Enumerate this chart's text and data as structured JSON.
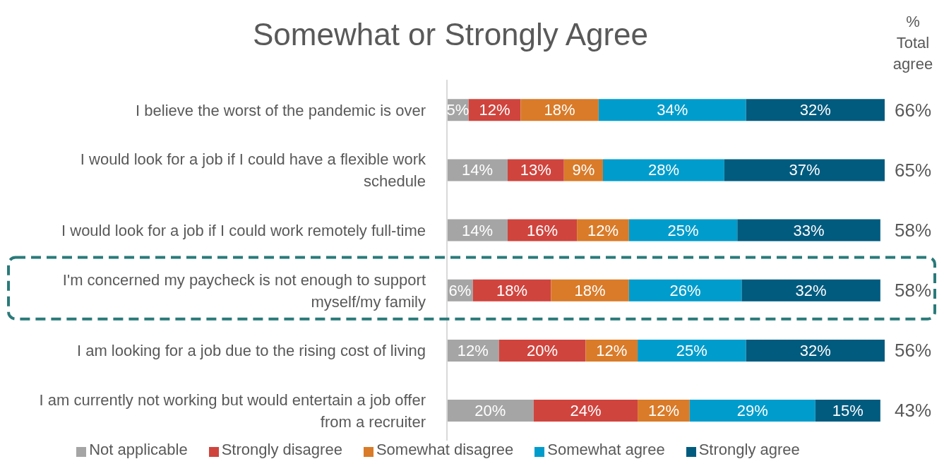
{
  "chart_data": {
    "type": "bar",
    "orientation": "horizontal",
    "stacked": true,
    "title": "Somewhat or Strongly Agree",
    "categories": [
      "I believe the worst of the pandemic is over",
      "I would look for a job if I could have a flexible work schedule",
      "I would look for a job if I could work remotely full-time",
      "I'm concerned my paycheck is not enough to support myself/my family",
      "I am looking for a job due to the rising cost of living",
      "I am currently not working but would entertain a job offer from a recruiter"
    ],
    "series": [
      {
        "name": "Not applicable",
        "color": "#a5a5a5",
        "values": [
          5,
          14,
          14,
          6,
          12,
          20
        ],
        "value_labels": [
          "5%",
          "14%",
          "14%",
          "6%",
          "12%",
          "20%"
        ]
      },
      {
        "name": "Strongly disagree",
        "color": "#d0443e",
        "values": [
          12,
          13,
          16,
          18,
          20,
          24
        ],
        "value_labels": [
          "12%",
          "13%",
          "16%",
          "18%",
          "20%",
          "24%"
        ]
      },
      {
        "name": "Somewhat disagree",
        "color": "#d97b29",
        "values": [
          18,
          9,
          12,
          18,
          12,
          12
        ],
        "value_labels": [
          "18%",
          "9%",
          "12%",
          "18%",
          "12%",
          "12%"
        ]
      },
      {
        "name": "Somewhat agree",
        "color": "#009ccc",
        "values": [
          34,
          28,
          25,
          26,
          25,
          29
        ],
        "value_labels": [
          "34%",
          "28%",
          "25%",
          "26%",
          "25%",
          "29%"
        ]
      },
      {
        "name": "Strongly agree",
        "color": "#005b7f",
        "values": [
          32,
          37,
          33,
          32,
          32,
          15
        ],
        "value_labels": [
          "32%",
          "37%",
          "33%",
          "32%",
          "32%",
          "15%"
        ]
      }
    ],
    "xlim": [
      0,
      101
    ],
    "annotations": [
      "% Total agree",
      "66%",
      "65%",
      "58%",
      "58%",
      "56%",
      "43%"
    ],
    "legend": "bottom"
  }
}
